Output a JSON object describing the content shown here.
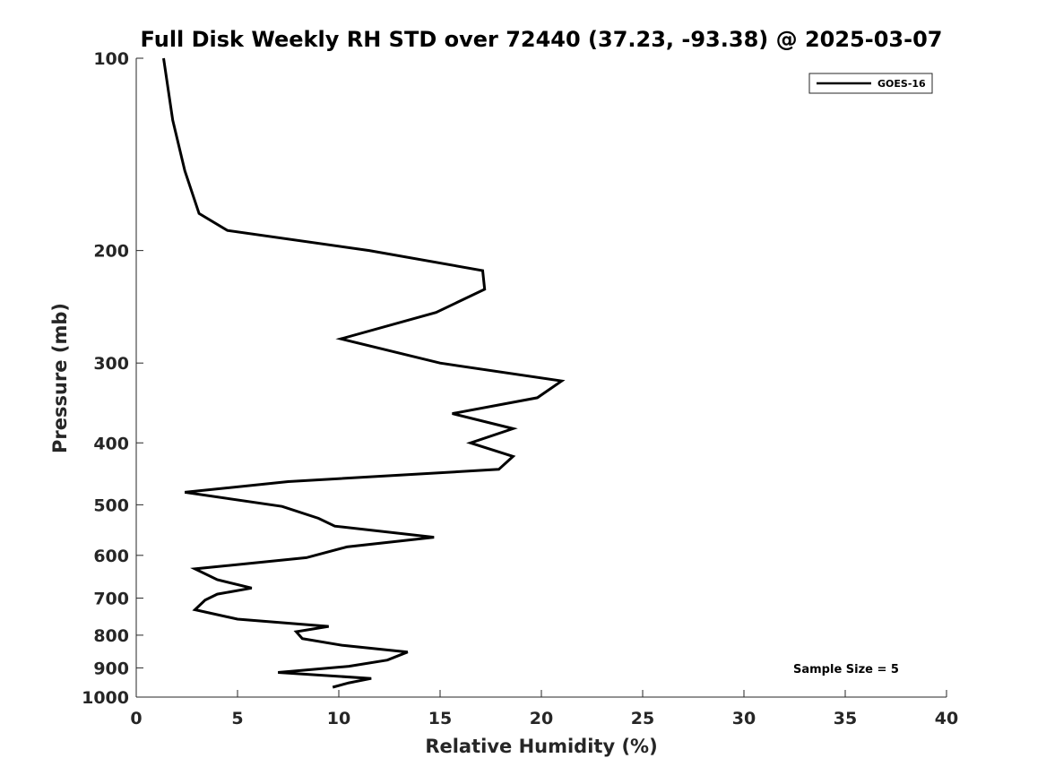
{
  "chart_data": {
    "type": "line",
    "title": "Full Disk Weekly RH STD over 72440 (37.23, -93.38) @ 2025-03-07",
    "xlabel": "Relative Humidity (%)",
    "ylabel": "Pressure (mb)",
    "xlim": [
      0,
      40
    ],
    "ylim": [
      100,
      1000
    ],
    "yscale": "log",
    "y_inverted": true,
    "xticks": [
      "0",
      "5",
      "10",
      "15",
      "20",
      "25",
      "30",
      "35",
      "40"
    ],
    "yticks": [
      "100",
      "200",
      "300",
      "400",
      "500",
      "600",
      "700",
      "800",
      "900",
      "1000"
    ],
    "grid": false,
    "legend": {
      "position": "top-right",
      "entries": [
        "GOES-16"
      ]
    },
    "annotation": "Sample Size = 5",
    "series": [
      {
        "name": "GOES-16",
        "color": "#000000",
        "points": [
          [
            1.35,
            100
          ],
          [
            1.8,
            125
          ],
          [
            2.4,
            150
          ],
          [
            3.1,
            175
          ],
          [
            4.5,
            186
          ],
          [
            11.5,
            200
          ],
          [
            17.1,
            215
          ],
          [
            17.2,
            230
          ],
          [
            14.8,
            250
          ],
          [
            10.1,
            275
          ],
          [
            15.0,
            300
          ],
          [
            21.0,
            320
          ],
          [
            19.8,
            340
          ],
          [
            15.6,
            360
          ],
          [
            18.6,
            380
          ],
          [
            16.5,
            400
          ],
          [
            18.6,
            420
          ],
          [
            17.9,
            440
          ],
          [
            7.5,
            460
          ],
          [
            2.4,
            478
          ],
          [
            7.2,
            503
          ],
          [
            9.0,
            525
          ],
          [
            9.8,
            540
          ],
          [
            14.7,
            562
          ],
          [
            10.4,
            582
          ],
          [
            8.4,
            605
          ],
          [
            2.9,
            630
          ],
          [
            4.0,
            655
          ],
          [
            5.7,
            675
          ],
          [
            4.0,
            690
          ],
          [
            3.4,
            705
          ],
          [
            2.9,
            730
          ],
          [
            5.0,
            755
          ],
          [
            9.5,
            775
          ],
          [
            7.9,
            790
          ],
          [
            8.2,
            810
          ],
          [
            10.2,
            830
          ],
          [
            13.4,
            850
          ],
          [
            12.4,
            875
          ],
          [
            10.5,
            895
          ],
          [
            7.0,
            915
          ],
          [
            11.6,
            935
          ],
          [
            10.5,
            950
          ],
          [
            9.7,
            965
          ]
        ]
      }
    ]
  }
}
